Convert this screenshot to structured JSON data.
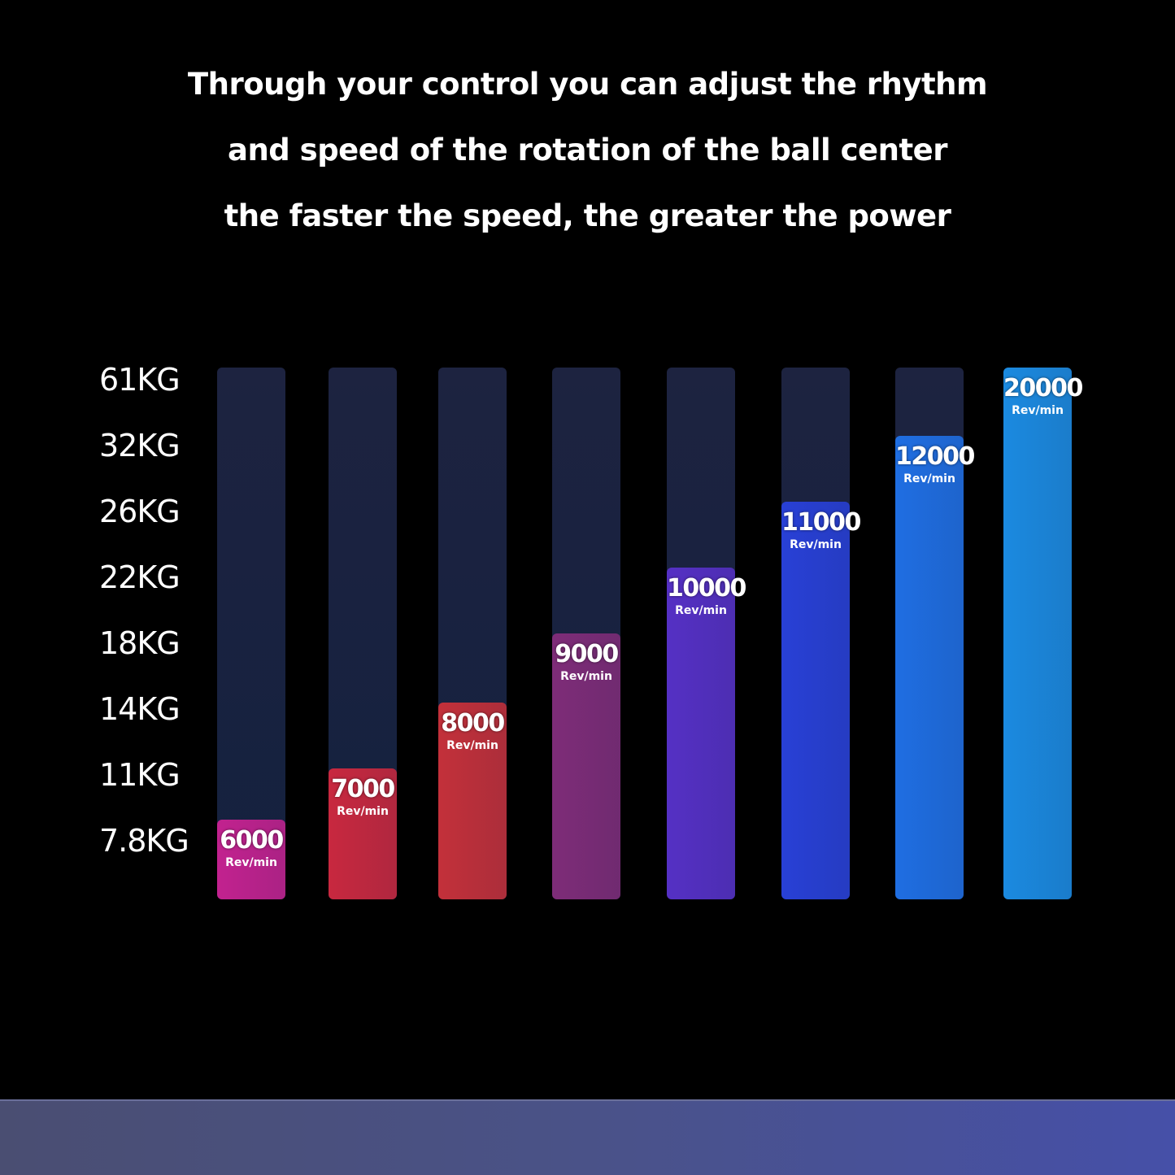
{
  "headline": [
    "Through your control you can adjust the rhythm",
    "and speed of the rotation of the ball center",
    "the faster the speed, the greater the power"
  ],
  "chart_data": {
    "type": "bar",
    "categories": [
      "6000",
      "7000",
      "8000",
      "9000",
      "10000",
      "11000",
      "12000",
      "20000"
    ],
    "unit_label": "Rev/min",
    "values": [
      6000,
      7000,
      8000,
      9000,
      10000,
      11000,
      12000,
      20000
    ],
    "force_levels": [
      "7.8KG",
      "11KG",
      "14KG",
      "18KG",
      "22KG",
      "26KG",
      "32KG",
      "61KG"
    ],
    "y_tick_labels_top_to_bottom": [
      "61KG",
      "32KG",
      "26KG",
      "22KG",
      "18KG",
      "14KG",
      "11KG",
      "7.8KG"
    ],
    "colors": [
      "#c2228f",
      "#c8283f",
      "#c3303a",
      "#7e2c78",
      "#5530c4",
      "#2840d6",
      "#1f6ee2",
      "#1b8ae0"
    ],
    "track_color": "#1a2240",
    "grid": false
  }
}
